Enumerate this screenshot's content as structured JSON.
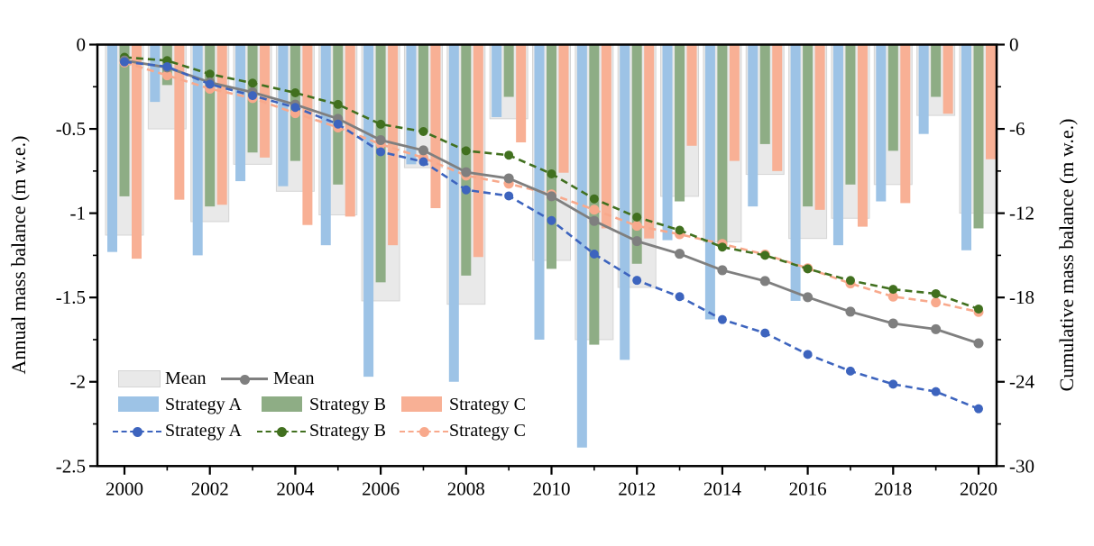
{
  "chart_data": {
    "type": "bar+line",
    "years": [
      2000,
      2001,
      2002,
      2003,
      2004,
      2005,
      2006,
      2007,
      2008,
      2009,
      2010,
      2011,
      2012,
      2013,
      2014,
      2015,
      2016,
      2017,
      2018,
      2019,
      2020
    ],
    "x_tick_labels": [
      "2000",
      "2002",
      "2004",
      "2006",
      "2008",
      "2010",
      "2012",
      "2014",
      "2016",
      "2018",
      "2020"
    ],
    "left_axis": {
      "label": "Annual mass balance (m w.e.)",
      "range": [
        0,
        -2.5
      ],
      "major_ticks": [
        0,
        -0.5,
        -1,
        -1.5,
        -2,
        -2.5
      ],
      "tick_labels": [
        "0",
        "-0.5",
        "-1",
        "-1.5",
        "-2",
        "-2.5"
      ],
      "minor_step": 0.25
    },
    "right_axis": {
      "label": "Cumulative mass balance (m w.e.)",
      "range": [
        0,
        -30
      ],
      "major_ticks": [
        0,
        -6,
        -12,
        -18,
        -24,
        -30
      ],
      "tick_labels": [
        "0",
        "-6",
        "-12",
        "-18",
        "-24",
        "-30"
      ],
      "minor_step": 3
    },
    "bar_series": [
      {
        "name": "Mean",
        "color": "#E9E9E9",
        "border": "#D5D5D5",
        "values": [
          -1.13,
          -0.5,
          -1.05,
          -0.71,
          -0.87,
          -1.01,
          -1.52,
          -0.73,
          -1.54,
          -0.44,
          -1.28,
          -1.75,
          -1.44,
          -0.9,
          -1.17,
          -0.77,
          -1.15,
          -1.03,
          -0.83,
          -0.42,
          -1.0
        ]
      },
      {
        "name": "Strategy A",
        "color": "#9DC3E6",
        "border": "",
        "values": [
          -1.23,
          -0.34,
          -1.25,
          -0.81,
          -0.84,
          -1.19,
          -1.97,
          -0.71,
          -2.0,
          -0.43,
          -1.75,
          -2.39,
          -1.87,
          -1.16,
          -1.63,
          -0.96,
          -1.52,
          -1.19,
          -0.93,
          -0.53,
          -1.22
        ]
      },
      {
        "name": "Strategy B",
        "color": "#8EAD85",
        "border": "",
        "values": [
          -0.9,
          -0.24,
          -0.96,
          -0.64,
          -0.69,
          -0.83,
          -1.41,
          -0.52,
          -1.37,
          -0.31,
          -1.33,
          -1.78,
          -1.3,
          -0.93,
          -1.2,
          -0.59,
          -0.96,
          -0.83,
          -0.63,
          -0.31,
          -1.09
        ]
      },
      {
        "name": "Strategy C",
        "color": "#F8B095",
        "border": "",
        "values": [
          -1.27,
          -0.92,
          -0.95,
          -0.67,
          -1.07,
          -1.02,
          -1.19,
          -0.97,
          -1.26,
          -0.58,
          -0.76,
          -1.09,
          -1.15,
          -0.6,
          -0.69,
          -0.75,
          -0.98,
          -1.08,
          -0.94,
          -0.41,
          -0.68
        ]
      }
    ],
    "line_series": [
      {
        "name": "Strategy C",
        "color": "#F8A98C",
        "dash": true,
        "marker_r": 5.5,
        "width": 2.6,
        "values": [
          -1.27,
          -2.19,
          -3.14,
          -3.81,
          -4.88,
          -5.9,
          -7.09,
          -8.06,
          -9.32,
          -9.9,
          -10.66,
          -11.75,
          -12.9,
          -13.5,
          -14.19,
          -14.94,
          -15.92,
          -17.0,
          -17.94,
          -18.35,
          -19.03
        ]
      },
      {
        "name": "Strategy B",
        "color": "#41701F",
        "dash": true,
        "marker_r": 5,
        "width": 2.6,
        "values": [
          -0.9,
          -1.14,
          -2.1,
          -2.74,
          -3.43,
          -4.26,
          -5.67,
          -6.19,
          -7.56,
          -7.87,
          -9.2,
          -10.98,
          -12.28,
          -13.21,
          -14.41,
          -15.0,
          -15.96,
          -16.79,
          -17.42,
          -17.73,
          -18.82
        ]
      },
      {
        "name": "Mean",
        "color": "#7F7F7F",
        "dash": false,
        "marker_r": 5.5,
        "width": 2.8,
        "values": [
          -1.13,
          -1.63,
          -2.69,
          -3.4,
          -4.27,
          -5.28,
          -6.8,
          -7.53,
          -9.08,
          -9.52,
          -10.8,
          -12.55,
          -13.99,
          -14.89,
          -16.06,
          -16.83,
          -17.98,
          -19.01,
          -19.85,
          -20.26,
          -21.26
        ]
      },
      {
        "name": "Strategy A",
        "color": "#3D64BE",
        "dash": true,
        "marker_r": 5,
        "width": 2.6,
        "values": [
          -1.23,
          -1.57,
          -2.82,
          -3.63,
          -4.47,
          -5.66,
          -7.63,
          -8.34,
          -10.34,
          -10.77,
          -12.52,
          -14.91,
          -16.78,
          -17.94,
          -19.57,
          -20.53,
          -22.05,
          -23.24,
          -24.17,
          -24.7,
          -25.92
        ]
      }
    ],
    "legend": {
      "mean_bar": "Mean",
      "mean_line": "Mean",
      "a_bar": "Strategy A",
      "b_bar": "Strategy B",
      "c_bar": "Strategy C",
      "a_line": "Strategy A",
      "b_line": "Strategy B",
      "c_line": "Strategy C"
    }
  }
}
